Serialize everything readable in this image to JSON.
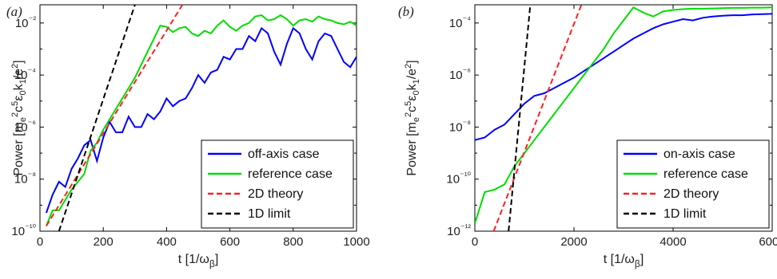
{
  "chart_data": [
    {
      "panel_label": "(a)",
      "type": "line",
      "xlabel": "t [1/ω_β]",
      "ylabel": "Power [m_e²c⁵ε₀k₁/e²]",
      "xlim": [
        0,
        1000
      ],
      "ylim_log10": [
        -10,
        -1.3
      ],
      "yscale": "log",
      "xticks": [
        "0",
        "200",
        "400",
        "600",
        "800",
        "1000"
      ],
      "yticks": [
        "10⁻¹⁰",
        "10⁻⁸",
        "10⁻⁶",
        "10⁻⁴",
        "10⁻²"
      ],
      "legend_position": "bottom-right",
      "series": [
        {
          "name": "off-axis case",
          "color": "#0000ff",
          "dash": "solid",
          "x": [
            20,
            40,
            60,
            80,
            100,
            120,
            140,
            160,
            180,
            200,
            220,
            240,
            260,
            280,
            300,
            320,
            340,
            360,
            380,
            400,
            420,
            440,
            460,
            480,
            500,
            520,
            540,
            560,
            580,
            600,
            620,
            640,
            660,
            680,
            700,
            720,
            740,
            760,
            780,
            800,
            820,
            840,
            860,
            880,
            900,
            920,
            940,
            960,
            980,
            1000
          ],
          "log10_y": [
            -9.3,
            -8.6,
            -8.1,
            -8.3,
            -7.6,
            -7.2,
            -6.7,
            -6.5,
            -7.3,
            -6.4,
            -5.8,
            -6.2,
            -6.2,
            -5.6,
            -6.0,
            -6.0,
            -5.5,
            -5.7,
            -5.4,
            -4.9,
            -5.2,
            -5.0,
            -4.9,
            -4.5,
            -4.0,
            -4.3,
            -3.9,
            -3.8,
            -3.3,
            -3.4,
            -3.0,
            -3.0,
            -2.5,
            -2.7,
            -2.2,
            -2.4,
            -3.1,
            -3.6,
            -2.8,
            -2.2,
            -2.4,
            -3.0,
            -3.4,
            -2.7,
            -2.4,
            -2.5,
            -3.0,
            -3.5,
            -3.7,
            -3.3
          ]
        },
        {
          "name": "reference case",
          "color": "#00dd00",
          "dash": "solid",
          "x": [
            20,
            40,
            60,
            80,
            100,
            120,
            140,
            160,
            180,
            200,
            220,
            240,
            260,
            280,
            300,
            320,
            340,
            360,
            380,
            400,
            420,
            440,
            460,
            480,
            500,
            520,
            540,
            560,
            580,
            600,
            620,
            640,
            660,
            680,
            700,
            720,
            740,
            760,
            780,
            800,
            820,
            840,
            860,
            880,
            900,
            920,
            940,
            960,
            980,
            1000
          ],
          "log10_y": [
            -9.8,
            -9.2,
            -9.2,
            -8.8,
            -8.4,
            -8.1,
            -7.8,
            -6.9,
            -6.6,
            -6.1,
            -5.7,
            -5.3,
            -4.9,
            -4.5,
            -4.1,
            -3.6,
            -3.1,
            -2.6,
            -2.1,
            -2.15,
            -2.35,
            -2.2,
            -2.15,
            -2.4,
            -2.5,
            -2.3,
            -2.4,
            -2.1,
            -1.9,
            -2.15,
            -2.3,
            -2.1,
            -2.0,
            -1.75,
            -1.7,
            -1.9,
            -1.85,
            -1.7,
            -1.85,
            -2.1,
            -1.9,
            -1.85,
            -1.95,
            -1.75,
            -1.85,
            -1.9,
            -2.0,
            -2.05,
            -1.95,
            -2.1
          ]
        },
        {
          "name": "2D theory",
          "color": "#ff2020",
          "dash": "dashed",
          "x": [
            20,
            450
          ],
          "log10_y": [
            -9.8,
            -1.3
          ]
        },
        {
          "name": "1D limit",
          "color": "#000000",
          "dash": "dashed",
          "x": [
            60,
            300
          ],
          "log10_y": [
            -10.0,
            -1.3
          ]
        }
      ]
    },
    {
      "panel_label": "(b)",
      "type": "line",
      "xlabel": "t [1/ω_β]",
      "ylabel": "Power [m_e²c⁵ε₀k₁/e²]",
      "xlim": [
        0,
        6000
      ],
      "ylim_log10": [
        -12,
        -3.3
      ],
      "yscale": "log",
      "xticks": [
        "0",
        "2000",
        "4000",
        "6000"
      ],
      "yticks": [
        "10⁻¹²",
        "10⁻¹⁰",
        "10⁻⁸",
        "10⁻⁶",
        "10⁻⁴"
      ],
      "legend_position": "bottom-right",
      "series": [
        {
          "name": "on-axis case",
          "color": "#0000ff",
          "dash": "solid",
          "x": [
            0,
            200,
            400,
            600,
            800,
            1000,
            1200,
            1400,
            1600,
            1800,
            2000,
            2200,
            2400,
            2600,
            2800,
            3000,
            3200,
            3400,
            3600,
            3800,
            4000,
            4200,
            4400,
            4600,
            4800,
            5000,
            5200,
            5400,
            5600,
            5800,
            6000
          ],
          "log10_y": [
            -8.5,
            -8.4,
            -8.1,
            -7.9,
            -7.5,
            -7.1,
            -6.8,
            -6.7,
            -6.5,
            -6.3,
            -6.1,
            -5.85,
            -5.6,
            -5.35,
            -5.1,
            -4.85,
            -4.6,
            -4.4,
            -4.2,
            -4.05,
            -3.95,
            -3.85,
            -3.9,
            -3.8,
            -3.75,
            -3.72,
            -3.7,
            -3.7,
            -3.67,
            -3.66,
            -3.65
          ]
        },
        {
          "name": "reference case",
          "color": "#00dd00",
          "dash": "solid",
          "x": [
            0,
            200,
            400,
            600,
            800,
            1000,
            1200,
            1400,
            1600,
            1800,
            2000,
            2200,
            2400,
            2600,
            2800,
            3000,
            3200,
            3400,
            3600,
            3800,
            4000,
            4200,
            4400,
            4600,
            4800,
            5000,
            5200,
            5400,
            5600,
            5800,
            6000
          ],
          "log10_y": [
            -11.7,
            -10.5,
            -10.4,
            -10.2,
            -9.5,
            -9.0,
            -8.5,
            -8.0,
            -7.5,
            -7.0,
            -6.5,
            -6.0,
            -5.5,
            -5.0,
            -4.4,
            -3.9,
            -3.4,
            -3.6,
            -3.75,
            -3.55,
            -3.5,
            -3.47,
            -3.45,
            -3.45,
            -3.44,
            -3.43,
            -3.42,
            -3.42,
            -3.41,
            -3.41,
            -3.4
          ]
        },
        {
          "name": "2D theory",
          "color": "#ff2020",
          "dash": "dashed",
          "x": [
            380,
            2150
          ],
          "log10_y": [
            -12.0,
            -3.3
          ]
        },
        {
          "name": "1D limit",
          "color": "#000000",
          "dash": "dashed",
          "x": [
            680,
            1120
          ],
          "log10_y": [
            -12.0,
            -3.3
          ]
        }
      ]
    }
  ]
}
